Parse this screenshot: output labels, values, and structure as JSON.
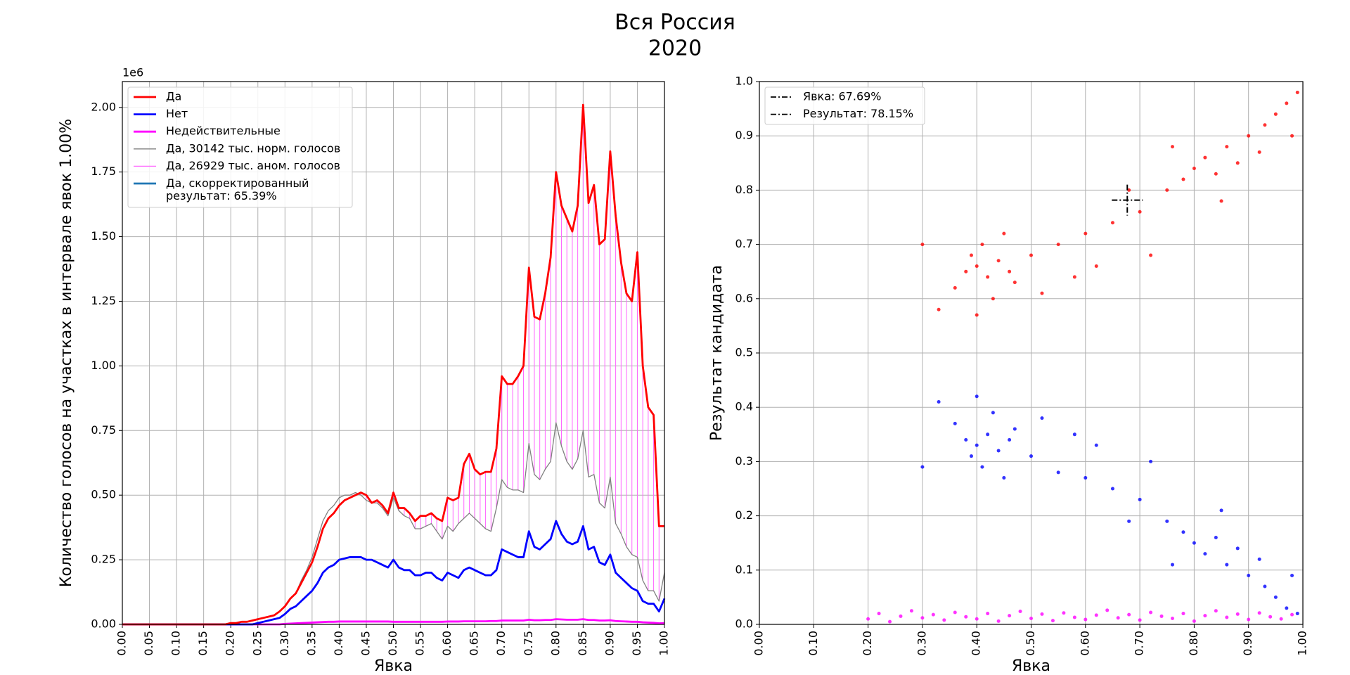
{
  "title": "Вся Россия",
  "subtitle": "2020",
  "chart_data": [
    {
      "type": "line",
      "xlabel": "Явка",
      "ylabel": "Количество голосов на участках в интервале явок 1.00%",
      "y_offset_label": "1e6",
      "grid": true,
      "legend": "upper left",
      "xlim": [
        0,
        1
      ],
      "ylim": [
        0,
        2.1
      ],
      "xticks": [
        {
          "value": 0,
          "label": "0.00"
        },
        {
          "value": 0.05,
          "label": "0.05"
        },
        {
          "value": 0.1,
          "label": "0.10"
        },
        {
          "value": 0.15,
          "label": "0.15"
        },
        {
          "value": 0.2,
          "label": "0.20"
        },
        {
          "value": 0.25,
          "label": "0.25"
        },
        {
          "value": 0.3,
          "label": "0.30"
        },
        {
          "value": 0.35,
          "label": "0.35"
        },
        {
          "value": 0.4,
          "label": "0.40"
        },
        {
          "value": 0.45,
          "label": "0.45"
        },
        {
          "value": 0.5,
          "label": "0.50"
        },
        {
          "value": 0.55,
          "label": "0.55"
        },
        {
          "value": 0.6,
          "label": "0.60"
        },
        {
          "value": 0.65,
          "label": "0.65"
        },
        {
          "value": 0.7,
          "label": "0.70"
        },
        {
          "value": 0.75,
          "label": "0.75"
        },
        {
          "value": 0.8,
          "label": "0.80"
        },
        {
          "value": 0.85,
          "label": "0.85"
        },
        {
          "value": 0.9,
          "label": "0.90"
        },
        {
          "value": 0.95,
          "label": "0.95"
        },
        {
          "value": 1,
          "label": "1.00"
        }
      ],
      "yticks": [
        {
          "value": 0,
          "label": "0.00"
        },
        {
          "value": 0.25,
          "label": "0.25"
        },
        {
          "value": 0.5,
          "label": "0.50"
        },
        {
          "value": 0.75,
          "label": "0.75"
        },
        {
          "value": 1,
          "label": "1.00"
        },
        {
          "value": 1.25,
          "label": "1.25"
        },
        {
          "value": 1.5,
          "label": "1.50"
        },
        {
          "value": 1.75,
          "label": "1.75"
        },
        {
          "value": 2,
          "label": "2.00"
        }
      ],
      "x": [
        0,
        0.01,
        0.02,
        0.03,
        0.04,
        0.05,
        0.06,
        0.07,
        0.08,
        0.09,
        0.1,
        0.11,
        0.12,
        0.13,
        0.14,
        0.15,
        0.16,
        0.17,
        0.18,
        0.19,
        0.2,
        0.21,
        0.22,
        0.23,
        0.24,
        0.25,
        0.26,
        0.27,
        0.28,
        0.29,
        0.3,
        0.31,
        0.32,
        0.33,
        0.34,
        0.35,
        0.36,
        0.37,
        0.38,
        0.39,
        0.4,
        0.41,
        0.42,
        0.43,
        0.44,
        0.45,
        0.46,
        0.47,
        0.48,
        0.49,
        0.5,
        0.51,
        0.52,
        0.53,
        0.54,
        0.55,
        0.56,
        0.57,
        0.58,
        0.59,
        0.6,
        0.61,
        0.62,
        0.63,
        0.64,
        0.65,
        0.66,
        0.67,
        0.68,
        0.69,
        0.7,
        0.71,
        0.72,
        0.73,
        0.74,
        0.75,
        0.76,
        0.77,
        0.78,
        0.79,
        0.8,
        0.81,
        0.82,
        0.83,
        0.84,
        0.85,
        0.86,
        0.87,
        0.88,
        0.89,
        0.9,
        0.91,
        0.92,
        0.93,
        0.94,
        0.95,
        0.96,
        0.97,
        0.98,
        0.99,
        1
      ],
      "series": [
        {
          "name": "Да",
          "color": "#ff0000",
          "values": [
            0,
            0,
            0,
            0,
            0,
            0,
            0,
            0,
            0,
            0,
            0,
            0,
            0,
            0,
            0,
            0,
            0,
            0,
            0,
            0,
            0.005,
            0.005,
            0.01,
            0.01,
            0.015,
            0.02,
            0.025,
            0.03,
            0.035,
            0.05,
            0.07,
            0.1,
            0.12,
            0.16,
            0.2,
            0.24,
            0.3,
            0.37,
            0.41,
            0.43,
            0.46,
            0.48,
            0.49,
            0.5,
            0.51,
            0.5,
            0.47,
            0.48,
            0.46,
            0.43,
            0.51,
            0.45,
            0.45,
            0.43,
            0.4,
            0.42,
            0.42,
            0.43,
            0.41,
            0.4,
            0.49,
            0.48,
            0.49,
            0.62,
            0.66,
            0.6,
            0.58,
            0.59,
            0.59,
            0.68,
            0.96,
            0.93,
            0.93,
            0.96,
            1.0,
            1.38,
            1.19,
            1.18,
            1.28,
            1.42,
            1.75,
            1.62,
            1.57,
            1.52,
            1.62,
            2.01,
            1.63,
            1.7,
            1.47,
            1.49,
            1.83,
            1.58,
            1.4,
            1.28,
            1.25,
            1.44,
            1.0,
            0.84,
            0.81,
            0.38,
            0.38
          ]
        },
        {
          "name": "Нет",
          "color": "#0000ff",
          "values": [
            0,
            0,
            0,
            0,
            0,
            0,
            0,
            0,
            0,
            0,
            0,
            0,
            0,
            0,
            0,
            0,
            0,
            0,
            0,
            0,
            0,
            0,
            0,
            0,
            0,
            0.005,
            0.01,
            0.015,
            0.02,
            0.025,
            0.04,
            0.06,
            0.07,
            0.09,
            0.11,
            0.13,
            0.16,
            0.2,
            0.22,
            0.23,
            0.25,
            0.255,
            0.26,
            0.26,
            0.26,
            0.25,
            0.25,
            0.24,
            0.23,
            0.22,
            0.25,
            0.22,
            0.21,
            0.21,
            0.19,
            0.19,
            0.2,
            0.2,
            0.18,
            0.17,
            0.2,
            0.19,
            0.18,
            0.21,
            0.22,
            0.21,
            0.2,
            0.19,
            0.19,
            0.21,
            0.29,
            0.28,
            0.27,
            0.26,
            0.26,
            0.36,
            0.3,
            0.29,
            0.31,
            0.33,
            0.4,
            0.35,
            0.32,
            0.31,
            0.32,
            0.38,
            0.29,
            0.3,
            0.24,
            0.23,
            0.27,
            0.2,
            0.18,
            0.16,
            0.14,
            0.13,
            0.09,
            0.08,
            0.08,
            0.05,
            0.1
          ]
        },
        {
          "name": "Недействительные",
          "color": "#ff00ff",
          "values": [
            0,
            0,
            0,
            0,
            0,
            0,
            0,
            0,
            0,
            0,
            0,
            0,
            0,
            0,
            0,
            0,
            0,
            0,
            0,
            0,
            0,
            0,
            0,
            0,
            0,
            0,
            0,
            0,
            0,
            0,
            0.002,
            0.003,
            0.004,
            0.005,
            0.006,
            0.007,
            0.008,
            0.009,
            0.01,
            0.01,
            0.011,
            0.011,
            0.011,
            0.011,
            0.011,
            0.011,
            0.011,
            0.011,
            0.011,
            0.011,
            0.01,
            0.01,
            0.01,
            0.01,
            0.01,
            0.01,
            0.01,
            0.01,
            0.01,
            0.01,
            0.011,
            0.011,
            0.011,
            0.012,
            0.012,
            0.012,
            0.012,
            0.012,
            0.013,
            0.013,
            0.015,
            0.015,
            0.015,
            0.015,
            0.015,
            0.018,
            0.016,
            0.016,
            0.017,
            0.017,
            0.02,
            0.019,
            0.018,
            0.018,
            0.018,
            0.02,
            0.017,
            0.017,
            0.015,
            0.015,
            0.016,
            0.013,
            0.012,
            0.011,
            0.01,
            0.01,
            0.008,
            0.007,
            0.006,
            0.004,
            0.005
          ]
        },
        {
          "name": "Да, 30142 тыс. норм. голосов",
          "color": "#808080",
          "values": [
            0,
            0,
            0,
            0,
            0,
            0,
            0,
            0,
            0,
            0,
            0,
            0,
            0,
            0,
            0,
            0,
            0,
            0,
            0,
            0,
            0.005,
            0.005,
            0.01,
            0.01,
            0.015,
            0.02,
            0.025,
            0.03,
            0.035,
            0.05,
            0.07,
            0.1,
            0.12,
            0.17,
            0.21,
            0.26,
            0.33,
            0.4,
            0.44,
            0.46,
            0.49,
            0.5,
            0.5,
            0.51,
            0.5,
            0.48,
            0.47,
            0.47,
            0.45,
            0.42,
            0.49,
            0.44,
            0.42,
            0.41,
            0.37,
            0.37,
            0.38,
            0.39,
            0.36,
            0.33,
            0.38,
            0.36,
            0.39,
            0.41,
            0.43,
            0.41,
            0.39,
            0.37,
            0.36,
            0.45,
            0.56,
            0.53,
            0.52,
            0.52,
            0.51,
            0.7,
            0.58,
            0.56,
            0.6,
            0.63,
            0.78,
            0.69,
            0.63,
            0.6,
            0.64,
            0.75,
            0.57,
            0.58,
            0.47,
            0.45,
            0.57,
            0.39,
            0.35,
            0.3,
            0.27,
            0.26,
            0.17,
            0.13,
            0.13,
            0.09,
            0.2
          ]
        },
        {
          "name": "Да, 26929 тыс. аном. голосов",
          "color": "#ff66ff"
        },
        {
          "name": "Да, скорректированный\nрезультат: 65.39%",
          "color": "#1f77b4"
        }
      ]
    },
    {
      "type": "scatter",
      "xlabel": "Явка",
      "ylabel": "Результат кандидата",
      "grid": true,
      "legend": "upper left",
      "xlim": [
        0,
        1
      ],
      "ylim": [
        0,
        1
      ],
      "xticks": [
        {
          "value": 0,
          "label": "0.00"
        },
        {
          "value": 0.1,
          "label": "0.10"
        },
        {
          "value": 0.2,
          "label": "0.20"
        },
        {
          "value": 0.3,
          "label": "0.30"
        },
        {
          "value": 0.4,
          "label": "0.40"
        },
        {
          "value": 0.5,
          "label": "0.50"
        },
        {
          "value": 0.6,
          "label": "0.60"
        },
        {
          "value": 0.7,
          "label": "0.70"
        },
        {
          "value": 0.8,
          "label": "0.80"
        },
        {
          "value": 0.9,
          "label": "0.90"
        },
        {
          "value": 1,
          "label": "1.00"
        }
      ],
      "yticks": [
        {
          "value": 0,
          "label": "0.0"
        },
        {
          "value": 0.1,
          "label": "0.1"
        },
        {
          "value": 0.2,
          "label": "0.2"
        },
        {
          "value": 0.3,
          "label": "0.3"
        },
        {
          "value": 0.4,
          "label": "0.4"
        },
        {
          "value": 0.5,
          "label": "0.5"
        },
        {
          "value": 0.6,
          "label": "0.6"
        },
        {
          "value": 0.7,
          "label": "0.7"
        },
        {
          "value": 0.8,
          "label": "0.8"
        },
        {
          "value": 0.9,
          "label": "0.9"
        },
        {
          "value": 1,
          "label": "1.0"
        }
      ],
      "series": [
        {
          "color": "#ff0000",
          "x": [
            0.38,
            0.4,
            0.42,
            0.44,
            0.46,
            0.36,
            0.41,
            0.43,
            0.39,
            0.47,
            0.33,
            0.5,
            0.55,
            0.6,
            0.65,
            0.7,
            0.75,
            0.78,
            0.8,
            0.82,
            0.84,
            0.86,
            0.88,
            0.9,
            0.92,
            0.95,
            0.97,
            0.99,
            0.72,
            0.62,
            0.52,
            0.3,
            0.45,
            0.58,
            0.68,
            0.85,
            0.93,
            0.98,
            0.76,
            0.4
          ],
          "y": [
            0.65,
            0.66,
            0.64,
            0.67,
            0.65,
            0.62,
            0.7,
            0.6,
            0.68,
            0.63,
            0.58,
            0.68,
            0.7,
            0.72,
            0.74,
            0.76,
            0.8,
            0.82,
            0.84,
            0.86,
            0.83,
            0.88,
            0.85,
            0.9,
            0.87,
            0.94,
            0.96,
            0.98,
            0.68,
            0.66,
            0.61,
            0.7,
            0.72,
            0.64,
            0.8,
            0.78,
            0.92,
            0.9,
            0.88,
            0.57
          ]
        },
        {
          "color": "#0000ff",
          "x": [
            0.38,
            0.4,
            0.42,
            0.44,
            0.46,
            0.36,
            0.41,
            0.43,
            0.39,
            0.47,
            0.33,
            0.5,
            0.55,
            0.6,
            0.65,
            0.7,
            0.75,
            0.78,
            0.8,
            0.82,
            0.84,
            0.86,
            0.88,
            0.9,
            0.92,
            0.95,
            0.97,
            0.99,
            0.72,
            0.62,
            0.52,
            0.3,
            0.45,
            0.58,
            0.68,
            0.85,
            0.93,
            0.98,
            0.76,
            0.4
          ],
          "y": [
            0.34,
            0.33,
            0.35,
            0.32,
            0.34,
            0.37,
            0.29,
            0.39,
            0.31,
            0.36,
            0.41,
            0.31,
            0.28,
            0.27,
            0.25,
            0.23,
            0.19,
            0.17,
            0.15,
            0.13,
            0.16,
            0.11,
            0.14,
            0.09,
            0.12,
            0.05,
            0.03,
            0.02,
            0.3,
            0.33,
            0.38,
            0.29,
            0.27,
            0.35,
            0.19,
            0.21,
            0.07,
            0.09,
            0.11,
            0.42
          ]
        },
        {
          "color": "#ff00ff",
          "x": [
            0.2,
            0.22,
            0.24,
            0.26,
            0.28,
            0.3,
            0.32,
            0.34,
            0.36,
            0.38,
            0.4,
            0.42,
            0.44,
            0.46,
            0.48,
            0.5,
            0.52,
            0.54,
            0.56,
            0.58,
            0.6,
            0.62,
            0.64,
            0.66,
            0.68,
            0.7,
            0.72,
            0.74,
            0.76,
            0.78,
            0.8,
            0.82,
            0.84,
            0.86,
            0.88,
            0.9,
            0.92,
            0.94,
            0.96,
            0.98
          ],
          "y": [
            0.01,
            0.02,
            0.005,
            0.015,
            0.025,
            0.012,
            0.018,
            0.008,
            0.022,
            0.014,
            0.01,
            0.02,
            0.006,
            0.016,
            0.024,
            0.011,
            0.019,
            0.007,
            0.021,
            0.013,
            0.009,
            0.017,
            0.026,
            0.012,
            0.018,
            0.008,
            0.022,
            0.015,
            0.011,
            0.02,
            0.006,
            0.016,
            0.025,
            0.013,
            0.019,
            0.009,
            0.021,
            0.014,
            0.01,
            0.018
          ]
        }
      ],
      "crosshair": {
        "x": 0.6769,
        "y": 0.7815,
        "color": "#000000",
        "labels": [
          "Явка: 67.69%",
          "Результат: 78.15%"
        ]
      }
    }
  ]
}
